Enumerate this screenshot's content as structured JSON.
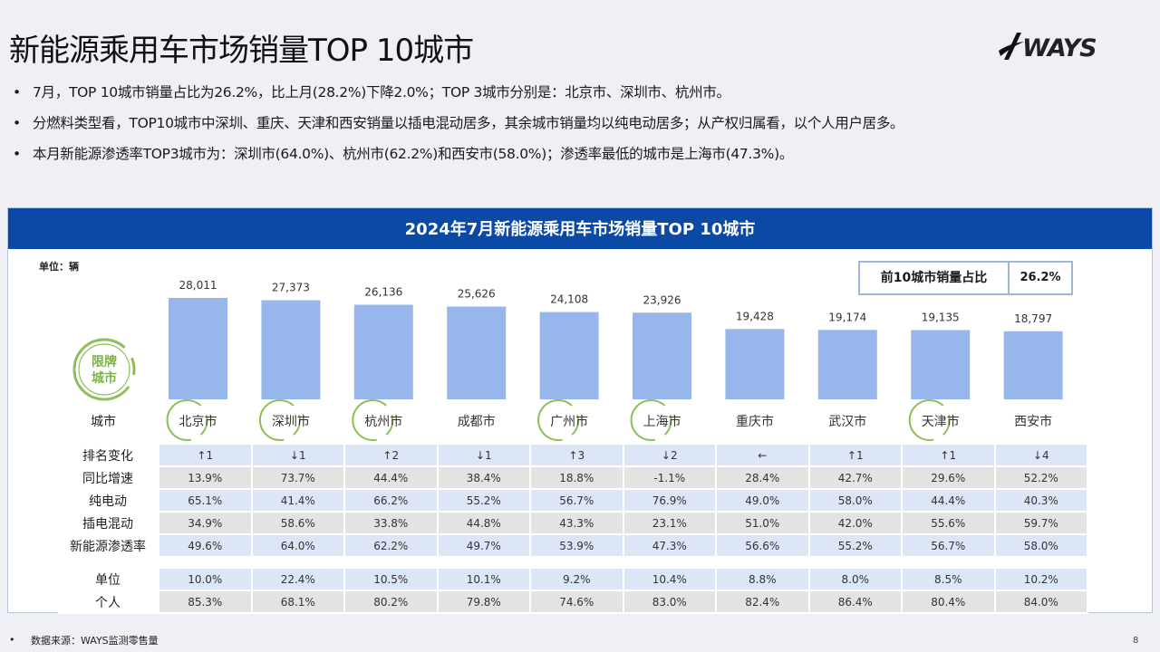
{
  "title": "新能源乘用车市场销量TOP 10城市",
  "logo_text": "WAYS",
  "bullets": [
    "7月，TOP 10城市销量占比为26.2%，比上月(28.2%)下降2.0%；TOP 3城市分别是：北京市、深圳市、杭州市。",
    "分燃料类型看，TOP10城市中深圳、重庆、天津和西安销量以插电混动居多，其余城市销量均以纯电动居多；从产权归属看，以个人用户居多。",
    "本月新能源渗透率TOP3城市为：深圳市(64.0%)、杭州市(62.2%)和西安市(58.0%)；渗透率最低的城市是上海市(47.3%)。"
  ],
  "panel": {
    "header": "2024年7月新能源乘用车市场销量TOP  10城市",
    "unit_note": "单位：辆",
    "share_label": "前10城市销量占比",
    "share_value": "26.2%",
    "badge_text_1": "限牌",
    "badge_text_2": "城市",
    "city_row_label": "城市"
  },
  "chart_data": {
    "type": "bar",
    "categories": [
      "北京市",
      "深圳市",
      "杭州市",
      "成都市",
      "广州市",
      "上海市",
      "重庆市",
      "武汉市",
      "天津市",
      "西安市"
    ],
    "values": [
      28011,
      27373,
      26136,
      25626,
      24108,
      23926,
      19428,
      19174,
      19135,
      18797
    ],
    "value_labels": [
      "28,011",
      "27,373",
      "26,136",
      "25,626",
      "24,108",
      "23,926",
      "19,428",
      "19,174",
      "19,135",
      "18,797"
    ],
    "restricted_plate_city": [
      true,
      true,
      true,
      false,
      true,
      true,
      false,
      false,
      true,
      false
    ],
    "bar_color": "#97b7ec",
    "circle_color": "#8dc05a",
    "title": "2024年7月新能源乘用车市场销量TOP  10城市",
    "ylabel": "单位：辆"
  },
  "table": {
    "rows": [
      {
        "label": "排名变化",
        "style": "blue",
        "values": [
          "↑1",
          "↓1",
          "↑2",
          "↓1",
          "↑3",
          "↓2",
          "←",
          "↑1",
          "↑1",
          "↓4"
        ]
      },
      {
        "label": "同比增速",
        "style": "gray",
        "values": [
          "13.9%",
          "73.7%",
          "44.4%",
          "38.4%",
          "18.8%",
          "-1.1%",
          "28.4%",
          "42.7%",
          "29.6%",
          "52.2%"
        ]
      },
      {
        "label": "纯电动",
        "style": "blue",
        "values": [
          "65.1%",
          "41.4%",
          "66.2%",
          "55.2%",
          "56.7%",
          "76.9%",
          "49.0%",
          "58.0%",
          "44.4%",
          "40.3%"
        ]
      },
      {
        "label": "插电混动",
        "style": "gray",
        "values": [
          "34.9%",
          "58.6%",
          "33.8%",
          "44.8%",
          "43.3%",
          "23.1%",
          "51.0%",
          "42.0%",
          "55.6%",
          "59.7%"
        ]
      },
      {
        "label": "新能源渗透率",
        "style": "blue",
        "values": [
          "49.6%",
          "64.0%",
          "62.2%",
          "49.7%",
          "53.9%",
          "47.3%",
          "56.6%",
          "55.2%",
          "56.7%",
          "58.0%"
        ]
      },
      {
        "label": "",
        "style": "spacer",
        "values": []
      },
      {
        "label": "单位",
        "style": "blue",
        "values": [
          "10.0%",
          "22.4%",
          "10.5%",
          "10.1%",
          "9.2%",
          "10.4%",
          "8.8%",
          "8.0%",
          "8.5%",
          "10.2%"
        ]
      },
      {
        "label": "个人",
        "style": "gray",
        "values": [
          "85.3%",
          "68.1%",
          "80.2%",
          "79.8%",
          "74.6%",
          "83.0%",
          "82.4%",
          "86.4%",
          "80.4%",
          "84.0%"
        ]
      }
    ]
  },
  "footer": {
    "bullet": "•",
    "source": "数据来源：WAYS监测零售量",
    "page": "8"
  }
}
